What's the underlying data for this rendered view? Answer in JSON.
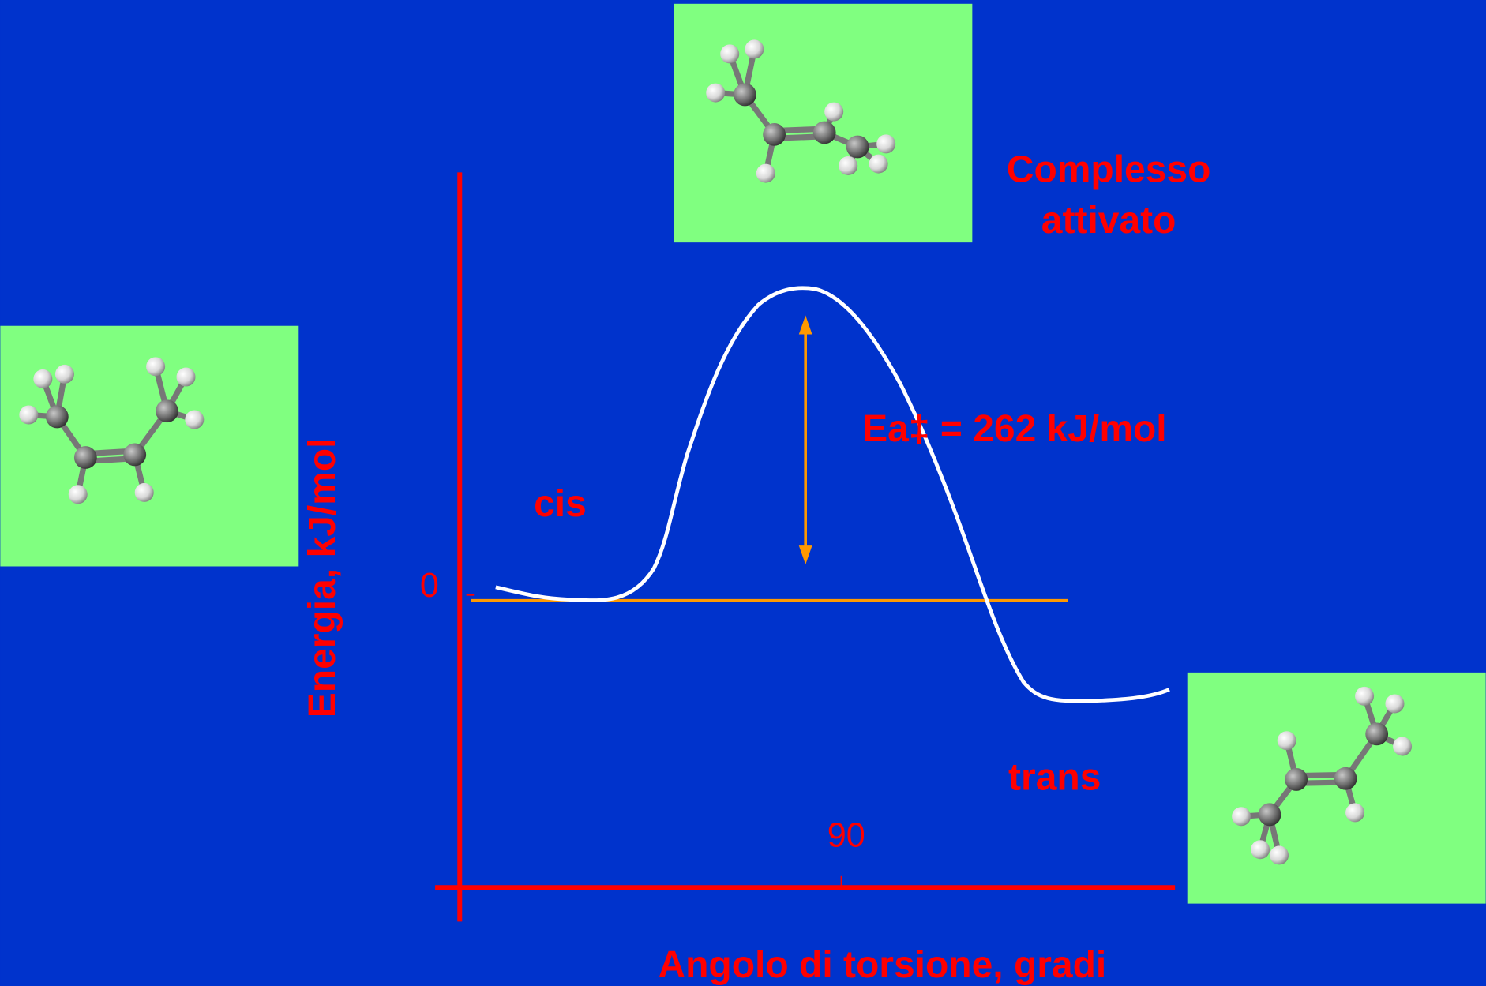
{
  "labels": {
    "activated_complex": [
      "Complesso",
      "attivato"
    ],
    "activation_energy": "Ea‡ = 262 kJ/mol",
    "cis": "cis",
    "trans": "trans",
    "y_axis_label": "Energia, kJ/mol",
    "x_axis_label": "Angolo di torsione, gradi",
    "y_tick": "0",
    "x_tick": "90"
  }
}
